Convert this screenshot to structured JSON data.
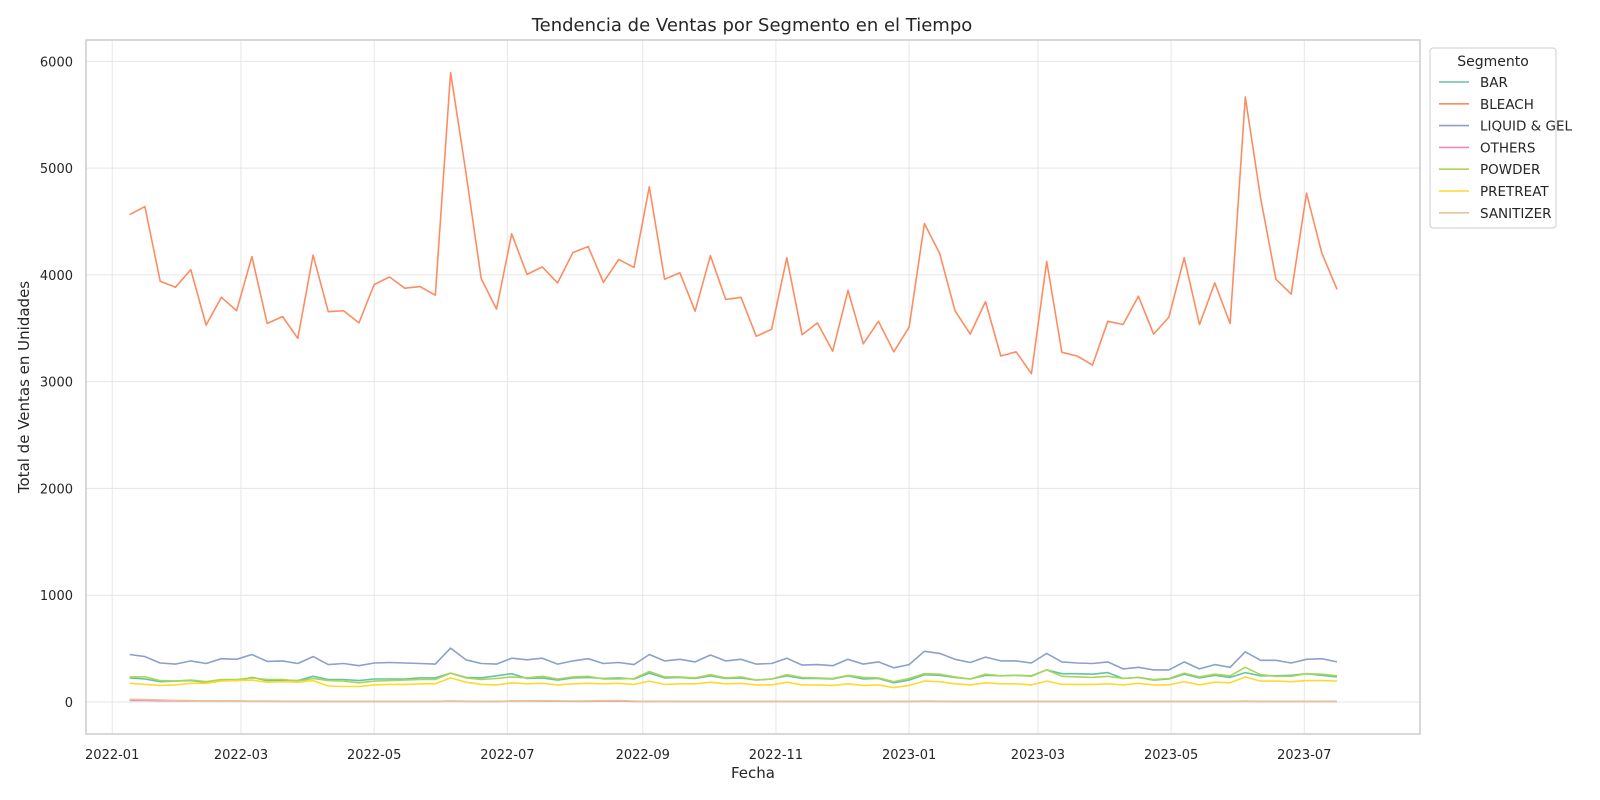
{
  "chart_data": {
    "type": "line",
    "title": "Tendencia de Ventas por Segmento en el Tiempo",
    "xlabel": "Fecha",
    "ylabel": "Total de Ventas en Unidades",
    "xlim": [
      "2021-12-20",
      "2023-08-23"
    ],
    "ylim": [
      -300,
      6200
    ],
    "yticks": [
      0,
      1000,
      2000,
      3000,
      4000,
      5000,
      6000
    ],
    "xticks": [
      {
        "date": "2022-01-01",
        "label": "2022-01"
      },
      {
        "date": "2022-03-01",
        "label": "2022-03"
      },
      {
        "date": "2022-05-01",
        "label": "2022-05"
      },
      {
        "date": "2022-07-01",
        "label": "2022-07"
      },
      {
        "date": "2022-09-01",
        "label": "2022-09"
      },
      {
        "date": "2022-11-01",
        "label": "2022-11"
      },
      {
        "date": "2023-01-01",
        "label": "2023-01"
      },
      {
        "date": "2023-03-01",
        "label": "2023-03"
      },
      {
        "date": "2023-05-01",
        "label": "2023-05"
      },
      {
        "date": "2023-07-01",
        "label": "2023-07"
      }
    ],
    "grid": true,
    "legend": {
      "title": "Segmento",
      "placement": "outside-right-top"
    },
    "x": [
      "2022-01-09",
      "2022-01-16",
      "2022-01-23",
      "2022-01-30",
      "2022-02-06",
      "2022-02-13",
      "2022-02-20",
      "2022-02-27",
      "2022-03-06",
      "2022-03-13",
      "2022-03-20",
      "2022-03-27",
      "2022-04-03",
      "2022-04-10",
      "2022-04-17",
      "2022-04-24",
      "2022-05-01",
      "2022-05-08",
      "2022-05-15",
      "2022-05-22",
      "2022-05-29",
      "2022-06-05",
      "2022-06-12",
      "2022-06-19",
      "2022-06-26",
      "2022-07-03",
      "2022-07-10",
      "2022-07-17",
      "2022-07-24",
      "2022-07-31",
      "2022-08-07",
      "2022-08-14",
      "2022-08-21",
      "2022-08-28",
      "2022-09-04",
      "2022-09-11",
      "2022-09-18",
      "2022-09-25",
      "2022-10-02",
      "2022-10-09",
      "2022-10-16",
      "2022-10-23",
      "2022-10-30",
      "2022-11-06",
      "2022-11-13",
      "2022-11-20",
      "2022-11-27",
      "2022-12-04",
      "2022-12-11",
      "2022-12-18",
      "2022-12-25",
      "2023-01-01",
      "2023-01-08",
      "2023-01-15",
      "2023-01-22",
      "2023-01-29",
      "2023-02-05",
      "2023-02-12",
      "2023-02-19",
      "2023-02-26",
      "2023-03-05",
      "2023-03-12",
      "2023-03-19",
      "2023-03-26",
      "2023-04-02",
      "2023-04-09",
      "2023-04-16",
      "2023-04-23",
      "2023-04-30",
      "2023-05-07",
      "2023-05-14",
      "2023-05-21",
      "2023-05-28",
      "2023-06-04",
      "2023-06-11",
      "2023-06-18",
      "2023-06-25",
      "2023-07-02",
      "2023-07-09",
      "2023-07-16"
    ],
    "series": [
      {
        "name": "BAR",
        "color": "#66c2a5",
        "values": [
          225,
          215,
          190,
          195,
          200,
          185,
          205,
          200,
          230,
          200,
          205,
          200,
          240,
          210,
          210,
          200,
          215,
          215,
          215,
          225,
          225,
          270,
          230,
          225,
          245,
          265,
          220,
          225,
          205,
          225,
          230,
          220,
          225,
          215,
          270,
          225,
          230,
          220,
          245,
          220,
          225,
          205,
          215,
          245,
          220,
          220,
          215,
          245,
          215,
          220,
          180,
          205,
          255,
          250,
          230,
          215,
          250,
          245,
          250,
          245,
          300,
          265,
          265,
          260,
          275,
          220,
          230,
          205,
          215,
          260,
          225,
          250,
          230,
          275,
          245,
          245,
          250,
          265,
          250,
          235
        ]
      },
      {
        "name": "BLEACH",
        "color": "#fc8d62",
        "values": [
          4565,
          4640,
          3940,
          3885,
          4050,
          3530,
          3790,
          3665,
          4170,
          3545,
          3610,
          3405,
          4185,
          3655,
          3665,
          3550,
          3910,
          3980,
          3875,
          3890,
          3810,
          5895,
          4960,
          3965,
          3680,
          4385,
          4005,
          4075,
          3925,
          4210,
          4265,
          3930,
          4145,
          4070,
          4825,
          3960,
          4020,
          3660,
          4180,
          3770,
          3790,
          3425,
          3490,
          4160,
          3440,
          3550,
          3285,
          3855,
          3355,
          3565,
          3280,
          3510,
          4480,
          4200,
          3665,
          3445,
          3750,
          3240,
          3280,
          3075,
          4125,
          3275,
          3240,
          3155,
          3565,
          3535,
          3800,
          3445,
          3605,
          4160,
          3535,
          3925,
          3545,
          5665,
          4720,
          3960,
          3820,
          4765,
          4205,
          3865
        ]
      },
      {
        "name": "LIQUID & GEL",
        "color": "#8da0cb",
        "values": [
          445,
          425,
          365,
          355,
          385,
          360,
          405,
          400,
          445,
          380,
          385,
          360,
          425,
          350,
          360,
          340,
          365,
          370,
          365,
          360,
          355,
          505,
          395,
          360,
          355,
          410,
          395,
          410,
          355,
          385,
          405,
          360,
          370,
          350,
          445,
          385,
          400,
          375,
          440,
          385,
          400,
          355,
          360,
          410,
          345,
          350,
          340,
          400,
          355,
          375,
          320,
          350,
          475,
          455,
          400,
          370,
          420,
          385,
          385,
          365,
          455,
          375,
          365,
          360,
          375,
          310,
          325,
          300,
          300,
          375,
          310,
          350,
          325,
          470,
          390,
          390,
          365,
          400,
          405,
          375
        ]
      },
      {
        "name": "OTHERS",
        "color": "#e78ac3",
        "values": [
          15,
          14,
          12,
          11,
          10,
          9,
          8,
          8,
          7,
          7,
          6,
          6,
          6,
          5,
          5,
          5,
          5,
          5,
          5,
          5,
          5,
          8,
          6,
          5,
          5,
          8,
          9,
          8,
          7,
          6,
          6,
          8,
          9,
          5,
          5,
          6,
          5,
          5,
          5,
          5,
          5,
          5,
          5,
          5,
          5,
          5,
          5,
          5,
          5,
          5,
          5,
          5,
          7,
          6,
          5,
          5,
          5,
          5,
          5,
          5,
          5,
          5,
          5,
          5,
          5,
          5,
          5,
          5,
          5,
          5,
          5,
          5,
          5,
          6,
          5,
          5,
          5,
          5,
          5,
          5
        ]
      },
      {
        "name": "POWDER",
        "color": "#a6d854",
        "values": [
          235,
          235,
          200,
          195,
          205,
          190,
          210,
          210,
          225,
          210,
          210,
          195,
          220,
          200,
          195,
          180,
          195,
          200,
          205,
          210,
          210,
          270,
          225,
          210,
          220,
          235,
          225,
          240,
          215,
          235,
          240,
          215,
          215,
          220,
          285,
          235,
          235,
          225,
          255,
          225,
          235,
          205,
          215,
          255,
          230,
          225,
          220,
          250,
          230,
          225,
          190,
          220,
          265,
          260,
          235,
          215,
          260,
          245,
          250,
          240,
          300,
          240,
          235,
          230,
          240,
          220,
          230,
          210,
          220,
          270,
          235,
          260,
          245,
          325,
          255,
          240,
          240,
          265,
          260,
          245
        ]
      },
      {
        "name": "PRETREAT",
        "color": "#ffd92f",
        "values": [
          175,
          165,
          155,
          160,
          175,
          175,
          195,
          200,
          205,
          185,
          190,
          185,
          200,
          150,
          145,
          145,
          160,
          165,
          165,
          170,
          170,
          225,
          185,
          165,
          160,
          180,
          170,
          175,
          160,
          170,
          175,
          170,
          175,
          165,
          195,
          165,
          170,
          170,
          185,
          170,
          175,
          160,
          160,
          185,
          160,
          160,
          155,
          170,
          155,
          160,
          135,
          155,
          195,
          190,
          170,
          160,
          180,
          170,
          170,
          160,
          195,
          165,
          165,
          165,
          170,
          160,
          175,
          160,
          160,
          190,
          160,
          185,
          180,
          235,
          195,
          195,
          190,
          200,
          200,
          195
        ]
      },
      {
        "name": "SANITIZER",
        "color": "#e5c494",
        "values": [
          25,
          22,
          18,
          15,
          12,
          10,
          8,
          8,
          6,
          5,
          5,
          5,
          5,
          5,
          5,
          5,
          5,
          5,
          5,
          5,
          5,
          6,
          5,
          5,
          5,
          8,
          10,
          12,
          10,
          9,
          10,
          12,
          14,
          8,
          5,
          5,
          5,
          5,
          5,
          5,
          5,
          5,
          5,
          5,
          5,
          5,
          5,
          5,
          5,
          5,
          5,
          5,
          5,
          5,
          5,
          5,
          5,
          5,
          5,
          5,
          5,
          5,
          5,
          5,
          5,
          5,
          5,
          5,
          5,
          5,
          5,
          5,
          5,
          8,
          6,
          5,
          5,
          5,
          5,
          5
        ]
      }
    ]
  }
}
